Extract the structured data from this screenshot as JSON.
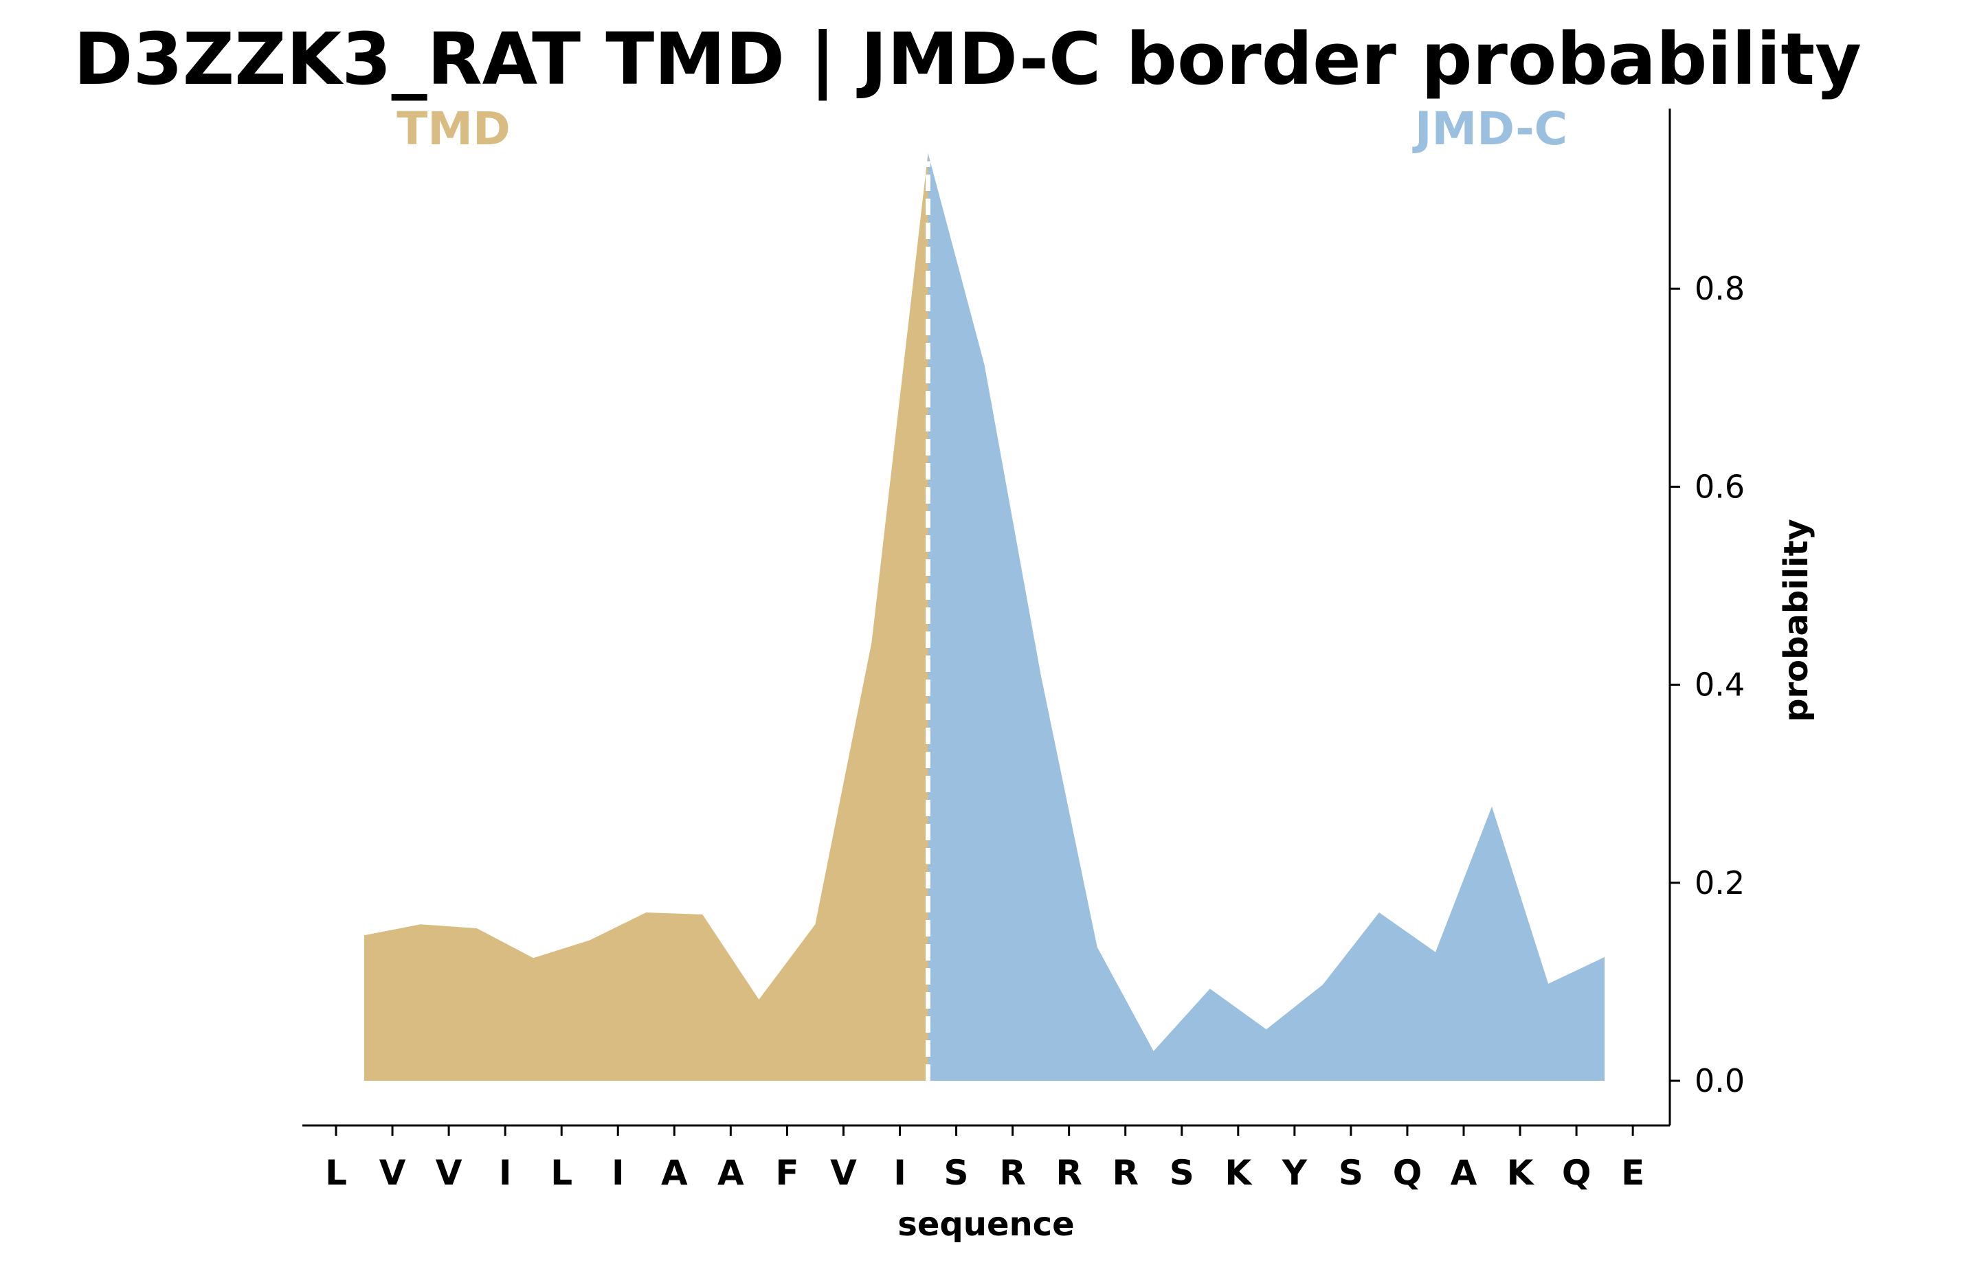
{
  "chart_data": {
    "type": "area",
    "title": "D3ZZK3_RAT TMD | JMD-C border probability",
    "xlabel": "sequence",
    "ylabel": "probability",
    "y_axis_side": "right",
    "ylim": [
      -0.046,
      0.98
    ],
    "y_ticks": [
      0.0,
      0.2,
      0.4,
      0.6,
      0.8
    ],
    "y_tick_labels": [
      "0.0",
      "0.2",
      "0.4",
      "0.6",
      "0.8"
    ],
    "sequence": [
      "L",
      "V",
      "V",
      "I",
      "L",
      "I",
      "A",
      "A",
      "F",
      "V",
      "I",
      "S",
      "R",
      "R",
      "R",
      "S",
      "K",
      "Y",
      "S",
      "Q",
      "A",
      "K",
      "Q",
      "E"
    ],
    "grid": false,
    "border_position": 10.5,
    "regions": [
      {
        "label": "TMD",
        "color": "#d9bc82",
        "x": [
          0.5,
          1.5,
          2.5,
          3.5,
          4.5,
          5.5,
          6.5,
          7.5,
          8.5,
          9.5,
          10.5
        ],
        "values": [
          0.147,
          0.158,
          0.154,
          0.124,
          0.142,
          0.17,
          0.168,
          0.082,
          0.158,
          0.443,
          0.937
        ]
      },
      {
        "label": "JMD-C",
        "color": "#9bbfdf",
        "x": [
          10.5,
          11.5,
          12.5,
          13.5,
          14.5,
          15.5,
          16.5,
          17.5,
          18.5,
          19.5,
          20.5,
          21.5,
          22.5
        ],
        "values": [
          0.937,
          0.723,
          0.41,
          0.135,
          0.03,
          0.093,
          0.052,
          0.097,
          0.17,
          0.13,
          0.277,
          0.098,
          0.125
        ]
      }
    ]
  }
}
